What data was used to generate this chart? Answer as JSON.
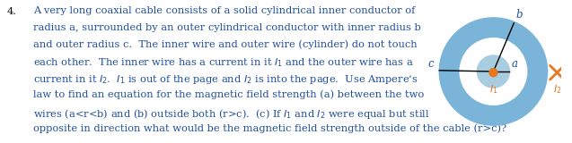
{
  "question_number": "4.",
  "text_lines": [
    "A very long coaxial cable consists of a solid cylindrical inner conductor of",
    "radius a, surrounded by an outer cylindrical conductor with inner radius b",
    "and outer radius c.  The inner wire and outer wire (cylinder) do not touch",
    "each other.  The inner wire has a current in it $I_1$ and the outer wire has a",
    "current in it $I_2$.  $I_1$ is out of the page and $I_2$ is into the page.  Use Ampere’s",
    "law to find an equation for the magnetic field strength (a) between the two",
    "wires (a<r<b) and (b) outside both (r>c).  (c) If $I_1$ and $I_2$ were equal but still",
    "opposite in direction what would be the magnetic field strength outside of the cable (r>c)?"
  ],
  "text_color": "#1f4e9e",
  "number_color": "#000000",
  "font_size": 8.2,
  "diagram": {
    "ring_color": "#7ab4d8",
    "inner_disk_color": "#a8cce0",
    "dot_color": "#e87722",
    "cross_color": "#e87722",
    "label_color": "#1f4e9e",
    "line_color": "#000000"
  }
}
